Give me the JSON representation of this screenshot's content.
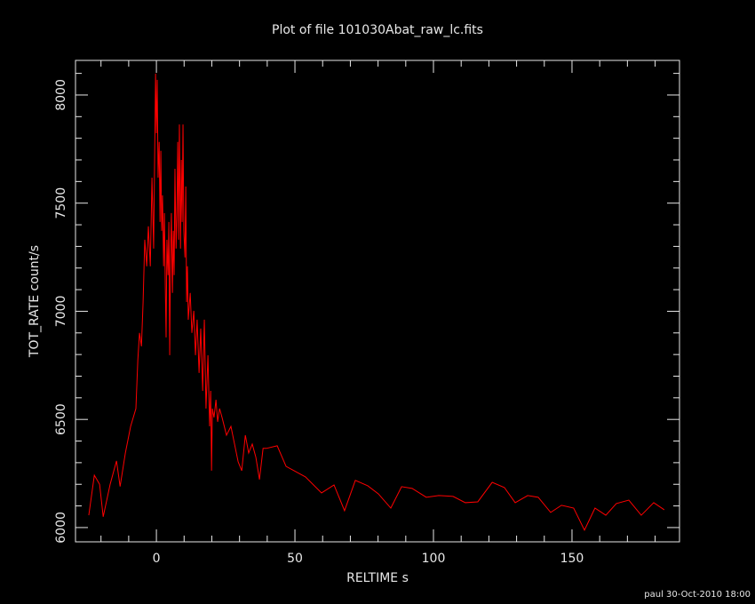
{
  "chart_data": {
    "type": "line",
    "title": "Plot of file 101030Abat_raw_lc.fits",
    "xlabel": "RELTIME  s",
    "ylabel": "TOT_RATE  count/s",
    "color": "#ff0000",
    "x": [
      -24.4,
      -22.4,
      -20.5,
      -19.2,
      -16.7,
      -14.4,
      -13.1,
      -11.2,
      -9.3,
      -7.4,
      -6.7,
      -6.1,
      -5.4,
      -4.8,
      -4.2,
      -3.5,
      -2.9,
      -2.2,
      -1.6,
      -1.0,
      -0.3,
      0,
      0.3,
      0.6,
      1.0,
      1.3,
      1.6,
      1.9,
      2.2,
      2.6,
      2.9,
      3.2,
      3.5,
      3.8,
      4.2,
      4.5,
      4.8,
      5.1,
      5.4,
      5.8,
      6.1,
      6.4,
      6.7,
      7.1,
      7.4,
      7.7,
      8.0,
      8.3,
      8.7,
      9.0,
      9.3,
      9.6,
      9.9,
      10.3,
      10.6,
      10.9,
      11.2,
      11.5,
      12.2,
      12.8,
      13.5,
      14.1,
      14.7,
      15.4,
      16.0,
      16.7,
      17.3,
      17.9,
      18.6,
      19.2,
      19.6,
      19.9,
      20.2,
      20.8,
      21.5,
      22.1,
      22.8,
      23.7,
      25.3,
      26.9,
      28.2,
      29.5,
      30.8,
      32.1,
      33.3,
      34.6,
      35.9,
      37.2,
      38.5,
      39.7,
      43.6,
      46.8,
      53.8,
      59.6,
      64.1,
      67.9,
      71.8,
      76.3,
      80.1,
      84.6,
      88.5,
      92.3,
      97.4,
      101.9,
      107.1,
      111.5,
      116.0,
      121.2,
      125.6,
      129.5,
      134.0,
      137.8,
      142.3,
      146.2,
      150.6,
      154.5,
      158.3,
      162.2,
      166.0,
      170.5,
      175.0,
      179.5,
      183.3
    ],
    "values": [
      6057,
      6242,
      6200,
      6050,
      6200,
      6308,
      6190,
      6345,
      6468,
      6550,
      6776,
      6900,
      6838,
      7043,
      7331,
      7208,
      7393,
      7208,
      7618,
      7290,
      8099,
      7823,
      8070,
      7618,
      7783,
      7413,
      7742,
      7372,
      7536,
      7208,
      7454,
      7126,
      6879,
      7331,
      7167,
      7413,
      6797,
      7249,
      7454,
      7085,
      7372,
      7167,
      7659,
      7290,
      7454,
      7783,
      7331,
      7864,
      7290,
      7700,
      7413,
      7864,
      7372,
      7249,
      7577,
      7043,
      7208,
      6961,
      7085,
      6900,
      7002,
      6797,
      6961,
      6715,
      6920,
      6632,
      6961,
      6550,
      6797,
      6468,
      6632,
      6263,
      6550,
      6509,
      6591,
      6489,
      6550,
      6509,
      6427,
      6468,
      6386,
      6304,
      6263,
      6427,
      6345,
      6386,
      6325,
      6222,
      6366,
      6366,
      6378,
      6283,
      6234,
      6160,
      6197,
      6078,
      6218,
      6193,
      6156,
      6090,
      6189,
      6181,
      6140,
      6148,
      6144,
      6115,
      6119,
      6209,
      6185,
      6115,
      6148,
      6140,
      6070,
      6103,
      6090,
      5988,
      6090,
      6057,
      6111,
      6127,
      6057,
      6115,
      6082
    ],
    "xlim": [
      -29.2,
      188.8
    ],
    "ylim": [
      5934,
      8160
    ],
    "xticks": [
      0,
      50,
      100,
      150
    ],
    "yticks": [
      6000,
      6500,
      7000,
      7500,
      8000
    ],
    "minor_xticks": [
      -20,
      -10,
      10,
      20,
      30,
      40,
      60,
      70,
      80,
      90,
      110,
      120,
      130,
      140,
      160,
      170,
      180
    ],
    "minor_yticks": [
      6100,
      6200,
      6300,
      6400,
      6600,
      6700,
      6800,
      6900,
      7100,
      7200,
      7300,
      7400,
      7600,
      7700,
      7800,
      7900,
      8100
    ]
  },
  "footer": "paul 30-Oct-2010 18:00"
}
